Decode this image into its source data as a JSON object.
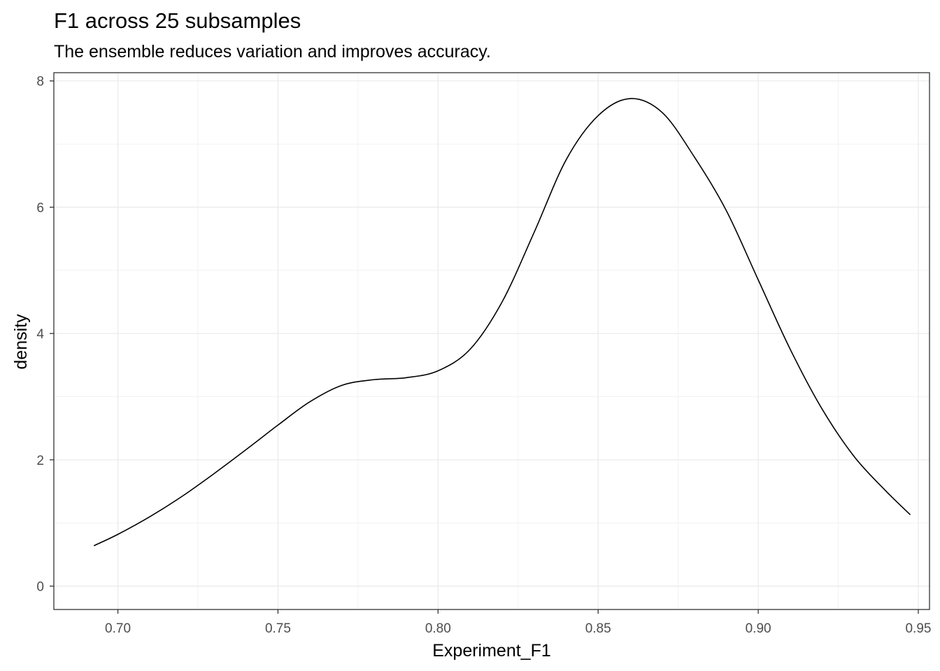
{
  "chart_data": {
    "type": "line",
    "title": "F1 across 25 subsamples",
    "subtitle": "The ensemble reduces variation and improves accuracy.",
    "xlabel": "Experiment_F1",
    "ylabel": "density",
    "xlim": [
      0.68,
      0.9535
    ],
    "ylim": [
      -0.37,
      8.13
    ],
    "x_ticks": [
      0.7,
      0.75,
      0.8,
      0.85,
      0.9,
      0.95
    ],
    "x_tick_labels": [
      "0.70",
      "0.75",
      "0.80",
      "0.85",
      "0.90",
      "0.95"
    ],
    "y_ticks": [
      0,
      2,
      4,
      6,
      8
    ],
    "y_tick_labels": [
      "0",
      "2",
      "4",
      "6",
      "8"
    ],
    "grid": true,
    "series": [
      {
        "x": [
          0.6925,
          0.7,
          0.71,
          0.72,
          0.73,
          0.74,
          0.75,
          0.76,
          0.77,
          0.78,
          0.79,
          0.8,
          0.81,
          0.82,
          0.83,
          0.84,
          0.85,
          0.86,
          0.87,
          0.88,
          0.89,
          0.9,
          0.91,
          0.92,
          0.93,
          0.94,
          0.9475
        ],
        "y": [
          0.64,
          0.82,
          1.1,
          1.42,
          1.78,
          2.16,
          2.55,
          2.92,
          3.18,
          3.27,
          3.3,
          3.41,
          3.75,
          4.5,
          5.6,
          6.75,
          7.45,
          7.72,
          7.5,
          6.8,
          5.95,
          4.85,
          3.75,
          2.8,
          2.05,
          1.5,
          1.13
        ]
      }
    ]
  }
}
